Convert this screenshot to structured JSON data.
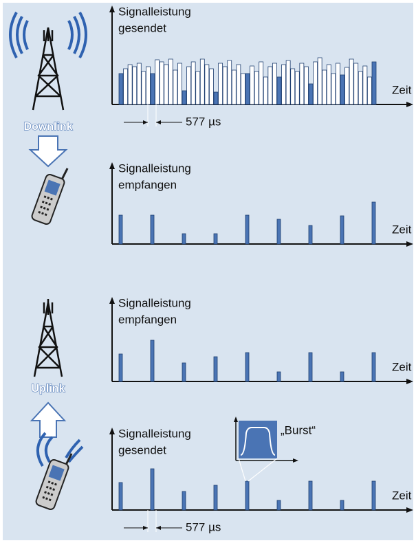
{
  "links": {
    "downlink": "Downlink",
    "uplink": "Uplink"
  },
  "panels": [
    {
      "label": [
        "Signalleistung",
        "gesendet"
      ],
      "axis_label": "Zeit",
      "slot_label": "577 µs",
      "values": [
        45,
        52,
        58,
        55,
        60,
        48,
        55,
        45,
        65,
        62,
        58,
        66,
        50,
        60,
        20,
        55,
        62,
        48,
        66,
        58,
        52,
        18,
        60,
        55,
        64,
        50,
        58,
        45,
        45,
        56,
        48,
        62,
        40,
        55,
        60,
        40,
        58,
        64,
        52,
        48,
        60,
        55,
        30,
        62,
        68,
        50,
        58,
        45,
        60,
        43,
        54,
        66,
        60,
        48,
        56,
        40,
        62
      ],
      "colors": [
        "#4a74b4",
        "#fff",
        "#fff",
        "#fff",
        "#fff",
        "#fff",
        "#fff",
        "#4a74b4",
        "#fff",
        "#fff",
        "#fff",
        "#fff",
        "#fff",
        "#fff",
        "#4a74b4",
        "#fff",
        "#fff",
        "#fff",
        "#fff",
        "#fff",
        "#fff",
        "#4a74b4",
        "#fff",
        "#fff",
        "#fff",
        "#fff",
        "#fff",
        "#fff",
        "#4a74b4",
        "#fff",
        "#fff",
        "#fff",
        "#fff",
        "#fff",
        "#fff",
        "#4a74b4",
        "#fff",
        "#fff",
        "#fff",
        "#fff",
        "#fff",
        "#fff",
        "#4a74b4",
        "#fff",
        "#fff",
        "#fff",
        "#fff",
        "#fff",
        "#fff",
        "#4a74b4",
        "#fff",
        "#fff",
        "#fff",
        "#fff",
        "#fff",
        "#fff",
        "#4a74b4"
      ]
    },
    {
      "label": [
        "Signalleistung",
        "empfangen"
      ],
      "axis_label": "Zeit",
      "values": [
        42,
        42,
        15,
        15,
        42,
        36,
        27,
        41,
        61
      ],
      "color": "#4a74b4"
    },
    {
      "label": [
        "Signalleistung",
        "empfangen"
      ],
      "axis_label": "Zeit",
      "values": [
        40,
        60,
        27,
        36,
        42,
        14,
        42,
        14,
        42
      ],
      "color": "#4a74b4"
    },
    {
      "label": [
        "Signalleistung",
        "gesendet"
      ],
      "axis_label": "Zeit",
      "slot_label": "577 µs",
      "burst_label": "„Burst“",
      "values": [
        40,
        60,
        27,
        36,
        42,
        14,
        42,
        14,
        42
      ],
      "color": "#4a74b4"
    }
  ]
}
